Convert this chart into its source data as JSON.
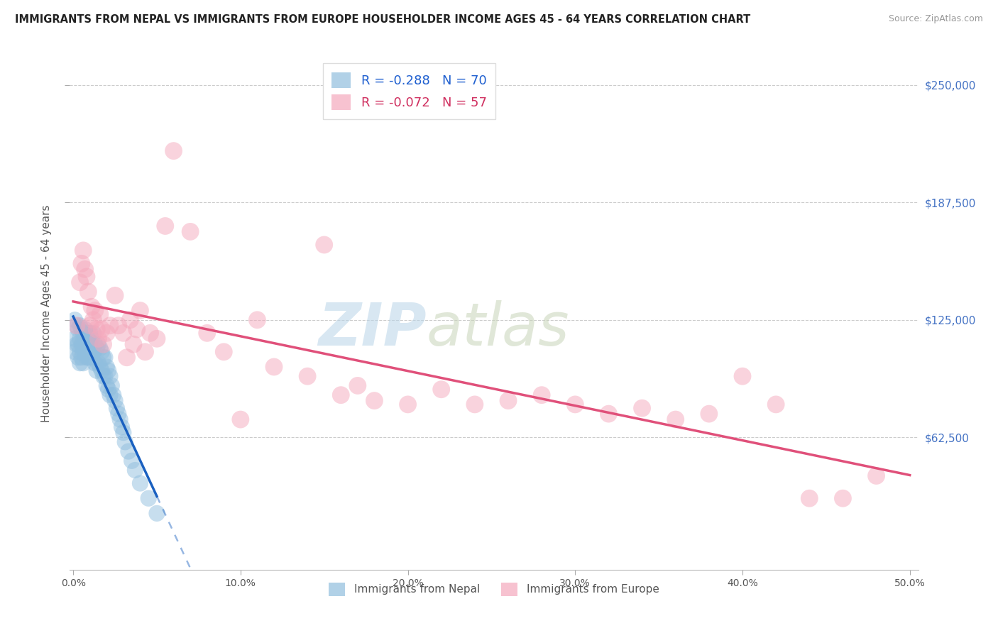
{
  "title": "IMMIGRANTS FROM NEPAL VS IMMIGRANTS FROM EUROPE HOUSEHOLDER INCOME AGES 45 - 64 YEARS CORRELATION CHART",
  "source": "Source: ZipAtlas.com",
  "ylabel": "Householder Income Ages 45 - 64 years",
  "ytick_labels": [
    "$62,500",
    "$125,000",
    "$187,500",
    "$250,000"
  ],
  "ytick_vals": [
    62500,
    125000,
    187500,
    250000
  ],
  "xtick_labels": [
    "0.0%",
    "10.0%",
    "20.0%",
    "30.0%",
    "40.0%",
    "50.0%"
  ],
  "xtick_vals": [
    0.0,
    0.1,
    0.2,
    0.3,
    0.4,
    0.5
  ],
  "xlim": [
    -0.002,
    0.505
  ],
  "ylim": [
    -8000,
    265000
  ],
  "nepal_color": "#90bede",
  "europe_color": "#f5a8bc",
  "nepal_line_color": "#1a60c0",
  "europe_line_color": "#e0507a",
  "nepal_label": "R = -0.288   N = 70",
  "europe_label": "R = -0.072   N = 57",
  "nepal_series_label": "Immigrants from Nepal",
  "europe_series_label": "Immigrants from Europe",
  "watermark_zip": "ZIP",
  "watermark_atlas": "atlas",
  "nepal_x": [
    0.001,
    0.001,
    0.001,
    0.002,
    0.002,
    0.003,
    0.003,
    0.003,
    0.004,
    0.004,
    0.004,
    0.004,
    0.005,
    0.005,
    0.005,
    0.006,
    0.006,
    0.006,
    0.006,
    0.007,
    0.007,
    0.007,
    0.008,
    0.008,
    0.008,
    0.009,
    0.009,
    0.009,
    0.01,
    0.01,
    0.01,
    0.011,
    0.011,
    0.012,
    0.012,
    0.013,
    0.013,
    0.014,
    0.014,
    0.015,
    0.015,
    0.016,
    0.016,
    0.017,
    0.017,
    0.018,
    0.018,
    0.019,
    0.019,
    0.02,
    0.02,
    0.021,
    0.021,
    0.022,
    0.022,
    0.023,
    0.024,
    0.025,
    0.026,
    0.027,
    0.028,
    0.029,
    0.03,
    0.031,
    0.033,
    0.035,
    0.037,
    0.04,
    0.045,
    0.05
  ],
  "nepal_y": [
    125000,
    115000,
    108000,
    122000,
    112000,
    120000,
    112000,
    105000,
    122000,
    115000,
    108000,
    102000,
    120000,
    112000,
    105000,
    118000,
    112000,
    108000,
    102000,
    120000,
    115000,
    108000,
    118000,
    112000,
    105000,
    118000,
    112000,
    105000,
    118000,
    112000,
    105000,
    115000,
    108000,
    118000,
    108000,
    112000,
    102000,
    110000,
    98000,
    112000,
    102000,
    110000,
    100000,
    108000,
    98000,
    105000,
    95000,
    105000,
    95000,
    100000,
    90000,
    98000,
    88000,
    95000,
    85000,
    90000,
    85000,
    82000,
    78000,
    75000,
    72000,
    68000,
    65000,
    60000,
    55000,
    50000,
    45000,
    38000,
    30000,
    22000
  ],
  "europe_x": [
    0.002,
    0.004,
    0.005,
    0.006,
    0.007,
    0.008,
    0.009,
    0.01,
    0.011,
    0.012,
    0.013,
    0.014,
    0.015,
    0.016,
    0.017,
    0.018,
    0.02,
    0.022,
    0.025,
    0.027,
    0.03,
    0.032,
    0.034,
    0.036,
    0.038,
    0.04,
    0.043,
    0.046,
    0.05,
    0.055,
    0.06,
    0.07,
    0.08,
    0.09,
    0.1,
    0.11,
    0.12,
    0.14,
    0.15,
    0.16,
    0.17,
    0.18,
    0.2,
    0.22,
    0.24,
    0.26,
    0.28,
    0.3,
    0.32,
    0.34,
    0.36,
    0.38,
    0.4,
    0.42,
    0.44,
    0.46,
    0.48
  ],
  "europe_y": [
    122000,
    145000,
    155000,
    162000,
    152000,
    148000,
    140000,
    122000,
    132000,
    125000,
    130000,
    120000,
    115000,
    128000,
    120000,
    112000,
    118000,
    122000,
    138000,
    122000,
    118000,
    105000,
    125000,
    112000,
    120000,
    130000,
    108000,
    118000,
    115000,
    175000,
    215000,
    172000,
    118000,
    108000,
    72000,
    125000,
    100000,
    95000,
    165000,
    85000,
    90000,
    82000,
    80000,
    88000,
    80000,
    82000,
    85000,
    80000,
    75000,
    78000,
    72000,
    75000,
    95000,
    80000,
    30000,
    30000,
    42000
  ]
}
